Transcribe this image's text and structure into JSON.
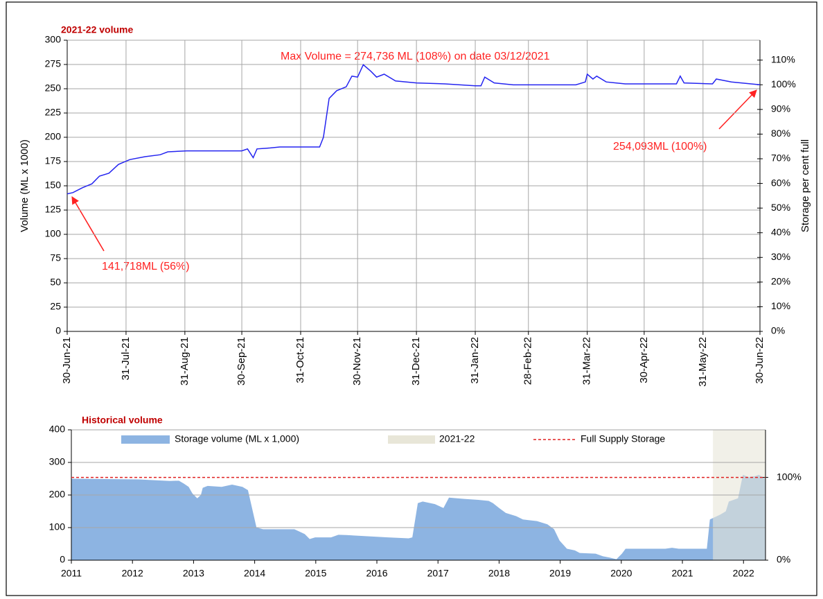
{
  "chart_data": [
    {
      "type": "line",
      "title": "2021-22 volume",
      "y_label": "Volume (ML x 1000)",
      "y2_label": "Storage per cent full",
      "color": "#2424f0",
      "x": [
        "2021-06-30",
        "2021-07-03",
        "2021-07-08",
        "2021-07-13",
        "2021-07-17",
        "2021-07-22",
        "2021-07-27",
        "2021-08-02",
        "2021-08-10",
        "2021-08-18",
        "2021-08-22",
        "2021-09-01",
        "2021-09-30",
        "2021-10-03",
        "2021-10-06",
        "2021-10-08",
        "2021-10-15",
        "2021-10-20",
        "2021-11-10",
        "2021-11-12",
        "2021-11-15",
        "2021-11-19",
        "2021-11-24",
        "2021-11-27",
        "2021-11-30",
        "2021-12-03",
        "2021-12-07",
        "2021-12-10",
        "2021-12-14",
        "2021-12-20",
        "2021-12-31",
        "2022-01-15",
        "2022-01-31",
        "2022-02-03",
        "2022-02-05",
        "2022-02-10",
        "2022-02-20",
        "2022-03-25",
        "2022-03-30",
        "2022-03-31",
        "2022-04-03",
        "2022-04-05",
        "2022-04-10",
        "2022-04-20",
        "2022-05-17",
        "2022-05-19",
        "2022-05-21",
        "2022-06-05",
        "2022-06-07",
        "2022-06-15",
        "2022-06-30"
      ],
      "values": [
        141.718,
        143,
        148,
        152,
        160,
        163,
        172,
        177,
        180,
        182,
        185,
        186,
        186,
        188,
        179,
        188,
        189,
        190,
        190,
        200,
        240,
        248,
        252,
        263,
        262,
        274.736,
        268,
        262,
        265,
        258,
        256,
        255,
        253,
        253,
        262,
        256,
        254,
        254,
        257,
        265,
        260,
        263,
        257,
        255,
        255,
        263,
        256,
        255,
        260,
        257,
        254.093
      ],
      "xlim": [
        "2021-06-30",
        "2022-06-30"
      ],
      "xticks": [
        {
          "value": "2021-06-30",
          "label": "30-Jun-21"
        },
        {
          "value": "2021-07-31",
          "label": "31-Jul-21"
        },
        {
          "value": "2021-08-31",
          "label": "31-Aug-21"
        },
        {
          "value": "2021-09-30",
          "label": "30-Sep-21"
        },
        {
          "value": "2021-10-31",
          "label": "31-Oct-21"
        },
        {
          "value": "2021-11-30",
          "label": "30-Nov-21"
        },
        {
          "value": "2021-12-31",
          "label": "31-Dec-21"
        },
        {
          "value": "2022-01-31",
          "label": "31-Jan-22"
        },
        {
          "value": "2022-02-28",
          "label": "28-Feb-22"
        },
        {
          "value": "2022-03-31",
          "label": "31-Mar-22"
        },
        {
          "value": "2022-04-30",
          "label": "30-Apr-22"
        },
        {
          "value": "2022-05-31",
          "label": "31-May-22"
        },
        {
          "value": "2022-06-30",
          "label": "30-Jun-22"
        }
      ],
      "ylim": [
        0,
        300
      ],
      "yticks": [
        0,
        25,
        50,
        75,
        100,
        125,
        150,
        175,
        200,
        225,
        250,
        275,
        300
      ],
      "y2lim": [
        0,
        118.07
      ],
      "y2ticks": [
        {
          "value": 0,
          "label": "0%"
        },
        {
          "value": 10,
          "label": "10%"
        },
        {
          "value": 20,
          "label": "20%"
        },
        {
          "value": 30,
          "label": "30%"
        },
        {
          "value": 40,
          "label": "40%"
        },
        {
          "value": 50,
          "label": "50%"
        },
        {
          "value": 60,
          "label": "60%"
        },
        {
          "value": 70,
          "label": "70%"
        },
        {
          "value": 80,
          "label": "80%"
        },
        {
          "value": 90,
          "label": "90%"
        },
        {
          "value": 100,
          "label": "100%"
        },
        {
          "value": 110,
          "label": "110%"
        }
      ],
      "grid": true,
      "annotations": [
        "Max Volume = 274,736 ML (108%) on date 03/12/2021",
        "254,093ML (100%)",
        "141,718ML (56%)"
      ]
    },
    {
      "type": "area",
      "title": "Historical volume",
      "x": [
        2011.0,
        2012.1,
        2012.61,
        2012.76,
        2012.84,
        2012.92,
        2012.98,
        2013.06,
        2013.12,
        2013.15,
        2013.23,
        2013.46,
        2013.63,
        2013.8,
        2013.89,
        2014.03,
        2014.14,
        2014.65,
        2014.73,
        2014.82,
        2014.9,
        2014.99,
        2015.25,
        2015.37,
        2015.5,
        2016.18,
        2016.52,
        2016.58,
        2016.67,
        2016.75,
        2016.95,
        2017.09,
        2017.18,
        2017.43,
        2017.66,
        2017.83,
        2017.9,
        2018.0,
        2018.11,
        2018.28,
        2018.39,
        2018.62,
        2018.79,
        2018.9,
        2018.99,
        2019.11,
        2019.24,
        2019.32,
        2019.58,
        2019.7,
        2019.81,
        2019.92,
        2020.01,
        2020.07,
        2020.72,
        2020.83,
        2020.94,
        2021.4,
        2021.45,
        2021.62,
        2021.71,
        2021.76,
        2021.91,
        2021.99,
        2022.08,
        2022.19,
        2022.25,
        2022.36
      ],
      "series": [
        {
          "name": "Storage volume (ML x 1,000)",
          "color": "#8db4e2",
          "values": [
            250,
            248,
            243,
            244,
            235,
            225,
            205,
            190,
            200,
            222,
            228,
            225,
            232,
            225,
            215,
            100,
            95,
            95,
            88,
            80,
            65,
            70,
            70,
            78,
            77,
            70,
            67,
            70,
            175,
            180,
            172,
            160,
            192,
            188,
            185,
            182,
            175,
            160,
            145,
            135,
            125,
            120,
            110,
            95,
            60,
            35,
            30,
            22,
            20,
            12,
            8,
            3,
            20,
            35,
            35,
            38,
            35,
            35,
            125,
            140,
            150,
            180,
            190,
            262,
            255,
            258,
            262,
            250
          ]
        }
      ],
      "highlight": {
        "name": "2021-22",
        "range": [
          2021.5,
          2022.36
        ],
        "color": "#e8e6d8"
      },
      "reference_line": {
        "name": "Full Supply Storage",
        "value": 254.093,
        "color": "#e02020"
      },
      "xlim": [
        2011,
        2022.36
      ],
      "xticks": [
        2011,
        2012,
        2013,
        2014,
        2015,
        2016,
        2017,
        2018,
        2019,
        2020,
        2021,
        2022
      ],
      "ylim": [
        0,
        400
      ],
      "yticks": [
        0,
        100,
        200,
        300,
        400
      ],
      "y2lim": [
        0,
        157.42
      ],
      "y2ticks": [
        {
          "value": 0,
          "label": "0%"
        },
        {
          "value": 100,
          "label": "100%"
        }
      ],
      "grid": true,
      "legend": "top"
    }
  ]
}
